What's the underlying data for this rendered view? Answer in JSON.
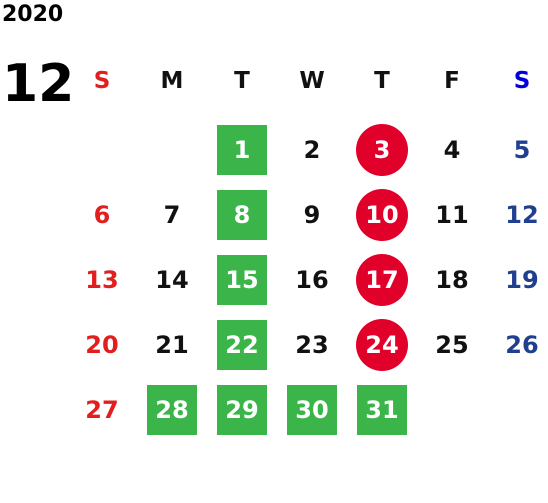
{
  "year": "2020",
  "month": "12",
  "colors": {
    "sunday": "#e31e1e",
    "weekday": "#111111",
    "saturday_header": "#0000dd",
    "saturday": "#1f3f8f",
    "highlight_square": "#3bb54a",
    "highlight_circle": "#e0002a",
    "highlight_text": "#ffffff"
  },
  "weekdays": [
    {
      "label": "S",
      "type": "sunday"
    },
    {
      "label": "M",
      "type": "weekday"
    },
    {
      "label": "T",
      "type": "weekday"
    },
    {
      "label": "W",
      "type": "weekday"
    },
    {
      "label": "T",
      "type": "weekday"
    },
    {
      "label": "F",
      "type": "weekday"
    },
    {
      "label": "S",
      "type": "saturday"
    }
  ],
  "weeks": [
    [
      null,
      null,
      {
        "day": "1",
        "highlight": "square"
      },
      {
        "day": "2"
      },
      {
        "day": "3",
        "highlight": "circle"
      },
      {
        "day": "4"
      },
      {
        "day": "5"
      }
    ],
    [
      {
        "day": "6"
      },
      {
        "day": "7"
      },
      {
        "day": "8",
        "highlight": "square"
      },
      {
        "day": "9"
      },
      {
        "day": "10",
        "highlight": "circle"
      },
      {
        "day": "11"
      },
      {
        "day": "12"
      }
    ],
    [
      {
        "day": "13"
      },
      {
        "day": "14"
      },
      {
        "day": "15",
        "highlight": "square"
      },
      {
        "day": "16"
      },
      {
        "day": "17",
        "highlight": "circle"
      },
      {
        "day": "18"
      },
      {
        "day": "19"
      }
    ],
    [
      {
        "day": "20"
      },
      {
        "day": "21"
      },
      {
        "day": "22",
        "highlight": "square"
      },
      {
        "day": "23"
      },
      {
        "day": "24",
        "highlight": "circle"
      },
      {
        "day": "25"
      },
      {
        "day": "26"
      }
    ],
    [
      {
        "day": "27"
      },
      {
        "day": "28",
        "highlight": "square"
      },
      {
        "day": "29",
        "highlight": "square"
      },
      {
        "day": "30",
        "highlight": "square"
      },
      {
        "day": "31",
        "highlight": "square"
      },
      null,
      null
    ]
  ]
}
